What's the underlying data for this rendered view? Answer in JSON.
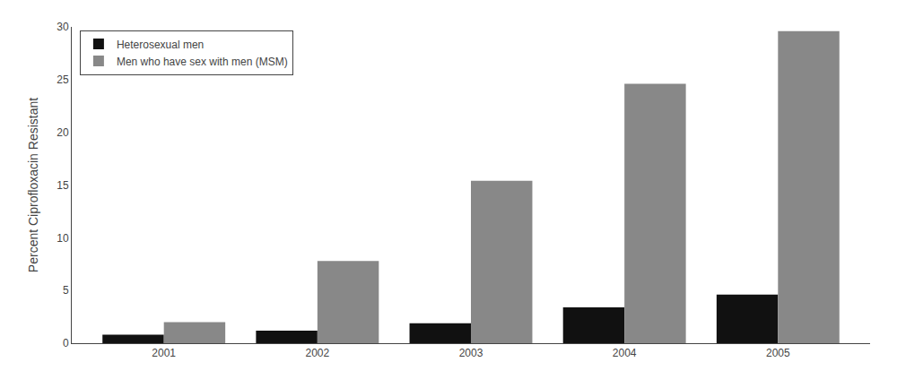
{
  "chart_data": {
    "type": "bar",
    "categories": [
      "2001",
      "2002",
      "2003",
      "2004",
      "2005"
    ],
    "series": [
      {
        "name": "Heterosexual men",
        "color": "#111111",
        "values": [
          0.8,
          1.2,
          1.9,
          3.4,
          4.6
        ]
      },
      {
        "name": "Men who have sex with men (MSM)",
        "color": "#888888",
        "values": [
          2.0,
          7.8,
          15.4,
          24.6,
          29.6
        ]
      }
    ],
    "ylabel": "Percent Ciprofloxacin Resistant",
    "ylim": [
      0,
      30
    ],
    "yticks": [
      0,
      5,
      10,
      15,
      20,
      25,
      30
    ],
    "grid": false,
    "legend": "upper left"
  }
}
